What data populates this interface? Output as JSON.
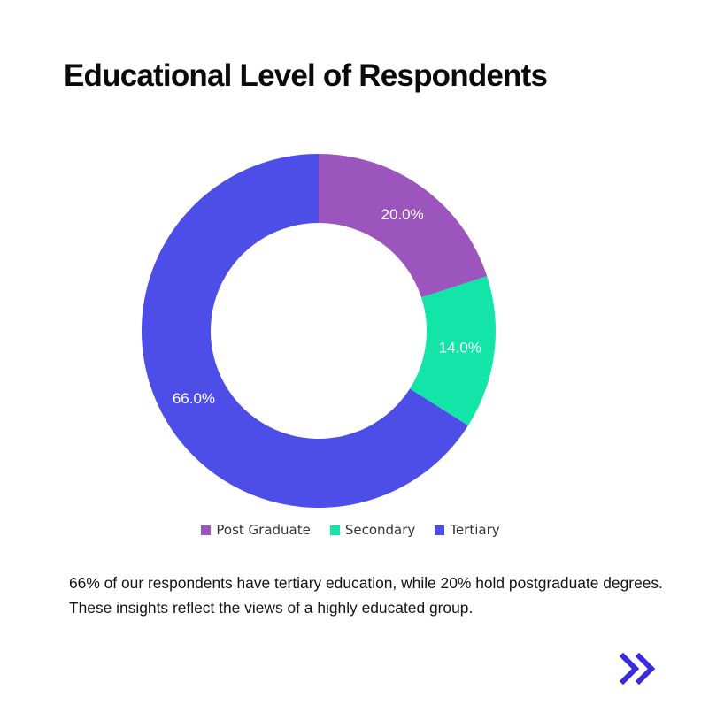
{
  "title": "Educational Level of Respondents",
  "chart_data": {
    "type": "pie",
    "style": "donut",
    "title": "",
    "legend_position": "bottom",
    "categories": [
      "Post Graduate",
      "Secondary",
      "Tertiary"
    ],
    "values": [
      20.0,
      14.0,
      66.0
    ],
    "labels": [
      "20.0%",
      "14.0%",
      "66.0%"
    ],
    "colors": [
      "#9b55bd",
      "#12e5a7",
      "#4d4de8"
    ],
    "start_angle_deg": 0,
    "direction": "clockwise"
  },
  "caption": "66% of our respondents have tertiary education, while 20% hold postgraduate degrees. These insights reflect the views of a highly educated group.",
  "next_icon": {
    "name": "double-chevron-right-icon",
    "color": "#3a2be0"
  }
}
